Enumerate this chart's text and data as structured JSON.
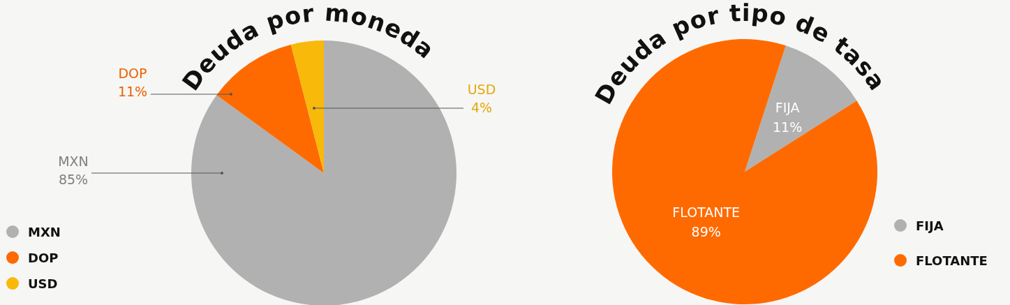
{
  "chart_data": [
    {
      "type": "pie",
      "title": "Deuda por moneda",
      "categories": [
        "MXN",
        "DOP",
        "USD"
      ],
      "values": [
        85,
        11,
        4
      ],
      "colors": [
        "#b1b1b1",
        "#fe6a00",
        "#f8b90a"
      ],
      "value_labels": [
        "85%",
        "11%",
        "4%"
      ],
      "legend": "bottom left"
    },
    {
      "type": "pie",
      "title": "Deuda por tipo de tasa",
      "categories": [
        "FIJA",
        "FLOTANTE"
      ],
      "values": [
        11,
        89
      ],
      "colors": [
        "#b1b1b1",
        "#fe6a00"
      ],
      "value_labels": [
        "11%",
        "89%"
      ],
      "legend": "bottom right"
    }
  ]
}
